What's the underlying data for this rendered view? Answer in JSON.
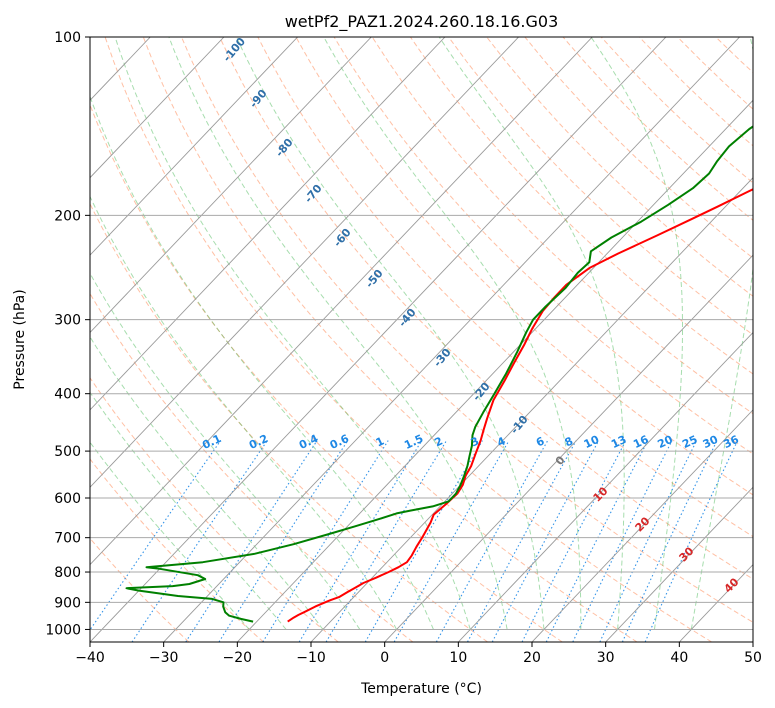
{
  "chart_data": {
    "type": "line",
    "title": "wetPf2_PAZ1.2024.260.18.16.G03",
    "xlabel": "Temperature (°C)",
    "ylabel": "Pressure (hPa)",
    "xlim": [
      -40,
      50
    ],
    "ylim": [
      1050,
      100
    ],
    "y_scale": "log",
    "x_ticks": [
      -40,
      -30,
      -20,
      -10,
      0,
      10,
      20,
      30,
      40,
      50
    ],
    "y_ticks": [
      1000,
      900,
      800,
      700,
      600,
      500,
      400,
      300,
      200,
      100
    ],
    "grid": true,
    "colors": {
      "temperature": "#ff0000",
      "dewpoint": "#008000",
      "dry_adiabat": "#ff8c5a",
      "moist_adiabat": "#3cb44b",
      "mixing_ratio": "#1e88e5",
      "isotherm": "#808080"
    },
    "series": [
      {
        "color": "#ff0000",
        "points": [
          [
            -15.8,
            970
          ],
          [
            -15.5,
            955
          ],
          [
            -15.2,
            945
          ],
          [
            -14.8,
            935
          ],
          [
            -14.0,
            915
          ],
          [
            -13.5,
            905
          ],
          [
            -12.8,
            893
          ],
          [
            -12.0,
            882
          ],
          [
            -11.5,
            865
          ],
          [
            -11.0,
            850
          ],
          [
            -10.5,
            835
          ],
          [
            -9.5,
            818
          ],
          [
            -8.5,
            800
          ],
          [
            -7.8,
            785
          ],
          [
            -7.3,
            770
          ],
          [
            -7.5,
            750
          ],
          [
            -8.0,
            725
          ],
          [
            -8.4,
            700
          ],
          [
            -8.8,
            680
          ],
          [
            -9.2,
            660
          ],
          [
            -9.8,
            640
          ],
          [
            -9.5,
            615
          ],
          [
            -9.3,
            590
          ],
          [
            -9.7,
            570
          ],
          [
            -10.5,
            550
          ],
          [
            -11.0,
            530
          ],
          [
            -12.0,
            505
          ],
          [
            -13.0,
            480
          ],
          [
            -14.0,
            460
          ],
          [
            -15.0,
            440
          ],
          [
            -16.5,
            410
          ],
          [
            -17.5,
            380
          ],
          [
            -18.5,
            355
          ],
          [
            -19.5,
            330
          ],
          [
            -20.5,
            310
          ],
          [
            -21.3,
            290
          ],
          [
            -21.5,
            275
          ],
          [
            -21.5,
            262
          ],
          [
            -20.5,
            245
          ],
          [
            -18.5,
            232
          ],
          [
            -15.5,
            216
          ],
          [
            -13.0,
            203
          ],
          [
            -11.0,
            193
          ],
          [
            -9.0,
            183
          ],
          [
            -7.0,
            174
          ],
          [
            -4.5,
            164
          ],
          [
            -1.0,
            152
          ],
          [
            3.0,
            141
          ],
          [
            6.5,
            131
          ],
          [
            8.0,
            122
          ],
          [
            9.0,
            112
          ],
          [
            9.5,
            100
          ]
        ]
      },
      {
        "color": "#008000",
        "points": [
          [
            -20.5,
            970
          ],
          [
            -22.5,
            960
          ],
          [
            -24.5,
            948
          ],
          [
            -25.5,
            935
          ],
          [
            -26.5,
            915
          ],
          [
            -27.0,
            900
          ],
          [
            -29.0,
            888
          ],
          [
            -34.0,
            878
          ],
          [
            -40.0,
            860
          ],
          [
            -42.0,
            852
          ],
          [
            -36.0,
            845
          ],
          [
            -34.0,
            838
          ],
          [
            -32.5,
            822
          ],
          [
            -34.0,
            810
          ],
          [
            -40.0,
            790
          ],
          [
            -42.0,
            785
          ],
          [
            -35.0,
            770
          ],
          [
            -29.0,
            745
          ],
          [
            -25.0,
            718
          ],
          [
            -21.5,
            690
          ],
          [
            -19.0,
            670
          ],
          [
            -16.5,
            650
          ],
          [
            -15.0,
            637
          ],
          [
            -13.5,
            630
          ],
          [
            -11.0,
            620
          ],
          [
            -9.5,
            608
          ],
          [
            -9.5,
            590
          ],
          [
            -10.0,
            570
          ],
          [
            -10.7,
            550
          ],
          [
            -11.5,
            530
          ],
          [
            -12.5,
            510
          ],
          [
            -13.5,
            490
          ],
          [
            -14.8,
            470
          ],
          [
            -15.5,
            455
          ],
          [
            -16.3,
            430
          ],
          [
            -17.2,
            400
          ],
          [
            -18.2,
            370
          ],
          [
            -19.5,
            340
          ],
          [
            -20.8,
            315
          ],
          [
            -21.5,
            300
          ],
          [
            -21.5,
            285
          ],
          [
            -21.2,
            265
          ],
          [
            -21.5,
            250
          ],
          [
            -21.3,
            240
          ],
          [
            -22.5,
            230
          ],
          [
            -21.5,
            218
          ],
          [
            -19.5,
            205
          ],
          [
            -18.0,
            192
          ],
          [
            -16.8,
            180
          ],
          [
            -16.5,
            170
          ],
          [
            -17.0,
            162
          ],
          [
            -17.3,
            153
          ],
          [
            -16.8,
            143
          ],
          [
            -15.5,
            133
          ],
          [
            -12.5,
            125
          ],
          [
            -8.0,
            118
          ],
          [
            -2.0,
            108
          ],
          [
            -0.5,
            100
          ]
        ]
      }
    ],
    "mixing_ratio_labels": [
      "0.1",
      "0.2",
      "0.4",
      "0.6",
      "1",
      "1.5",
      "2",
      "3",
      "4",
      "6",
      "8",
      "10",
      "13",
      "16",
      "20",
      "25",
      "30",
      "36"
    ],
    "moist_adiabat_labels": [
      "-100",
      "-90",
      "-80",
      "-70",
      "-60",
      "-50",
      "-40",
      "-30",
      "-20",
      "-10",
      "0"
    ],
    "dry_adiabat_labels": [
      "10",
      "20",
      "30",
      "40"
    ]
  }
}
